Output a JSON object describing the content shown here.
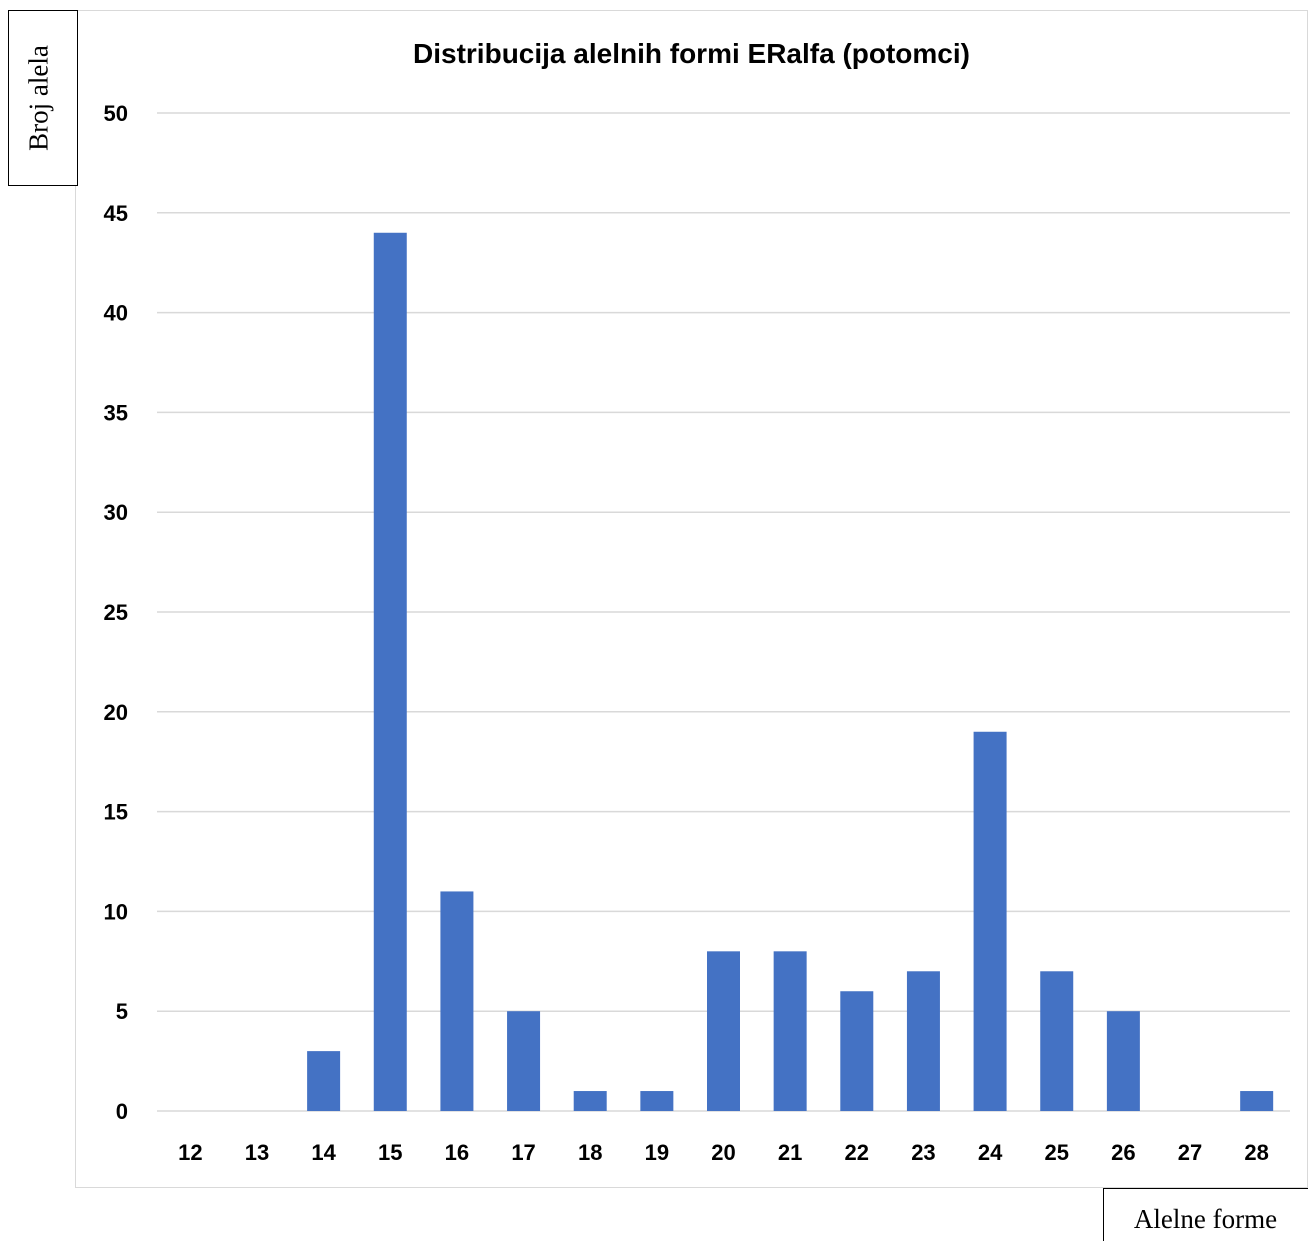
{
  "chart_data": {
    "type": "bar",
    "title": "Distribucija alelnih formi ERalfa (potomci)",
    "xlabel": "Alelne forme",
    "ylabel": "Broj alela",
    "categories": [
      "12",
      "13",
      "14",
      "15",
      "16",
      "17",
      "18",
      "19",
      "20",
      "21",
      "22",
      "23",
      "24",
      "25",
      "26",
      "27",
      "28"
    ],
    "values": [
      0,
      0,
      3,
      44,
      11,
      5,
      1,
      1,
      8,
      8,
      6,
      7,
      19,
      7,
      5,
      0,
      1
    ],
    "ylim": [
      0,
      50
    ],
    "yticks": [
      0,
      5,
      10,
      15,
      20,
      25,
      30,
      35,
      40,
      45,
      50
    ],
    "grid": true,
    "bar_color": "#4472c4",
    "grid_color": "#d9d9d9"
  }
}
